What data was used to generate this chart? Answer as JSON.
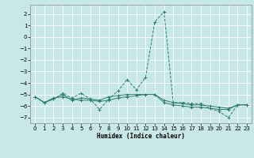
{
  "xlabel": "Humidex (Indice chaleur)",
  "bg_color": "#c8e8e8",
  "grid_color": "#ffffff",
  "line_color": "#2e7d6e",
  "xlim": [
    -0.5,
    23.5
  ],
  "ylim": [
    -7.5,
    2.8
  ],
  "yticks": [
    2,
    1,
    0,
    -1,
    -2,
    -3,
    -4,
    -5,
    -6,
    -7
  ],
  "xticks": [
    0,
    1,
    2,
    3,
    4,
    5,
    6,
    7,
    8,
    9,
    10,
    11,
    12,
    13,
    14,
    15,
    16,
    17,
    18,
    19,
    20,
    21,
    22,
    23
  ],
  "series1": [
    [
      0,
      -5.2
    ],
    [
      1,
      -5.7
    ],
    [
      2,
      -5.4
    ],
    [
      3,
      -4.9
    ],
    [
      4,
      -5.3
    ],
    [
      5,
      -4.9
    ],
    [
      6,
      -5.4
    ],
    [
      7,
      -6.3
    ],
    [
      8,
      -5.4
    ],
    [
      9,
      -4.7
    ],
    [
      10,
      -3.7
    ],
    [
      11,
      -4.6
    ],
    [
      12,
      -3.5
    ],
    [
      13,
      1.3
    ],
    [
      14,
      2.2
    ],
    [
      15,
      -5.7
    ],
    [
      16,
      -5.7
    ],
    [
      17,
      -5.8
    ],
    [
      18,
      -5.8
    ],
    [
      19,
      -6.2
    ],
    [
      20,
      -6.5
    ],
    [
      21,
      -7.0
    ],
    [
      22,
      -5.9
    ],
    [
      23,
      -5.9
    ]
  ],
  "series2": [
    [
      0,
      -5.2
    ],
    [
      1,
      -5.7
    ],
    [
      2,
      -5.3
    ],
    [
      3,
      -5.2
    ],
    [
      4,
      -5.4
    ],
    [
      5,
      -5.5
    ],
    [
      6,
      -5.5
    ],
    [
      7,
      -5.6
    ],
    [
      8,
      -5.5
    ],
    [
      9,
      -5.3
    ],
    [
      10,
      -5.2
    ],
    [
      11,
      -5.1
    ],
    [
      12,
      -5.0
    ],
    [
      13,
      -5.0
    ],
    [
      14,
      -5.5
    ],
    [
      15,
      -5.7
    ],
    [
      16,
      -5.8
    ],
    [
      17,
      -5.9
    ],
    [
      18,
      -5.9
    ],
    [
      19,
      -6.0
    ],
    [
      20,
      -6.1
    ],
    [
      21,
      -6.2
    ],
    [
      22,
      -5.9
    ],
    [
      23,
      -5.9
    ]
  ],
  "series3": [
    [
      0,
      -5.2
    ],
    [
      1,
      -5.7
    ],
    [
      2,
      -5.4
    ],
    [
      3,
      -5.0
    ],
    [
      4,
      -5.5
    ],
    [
      5,
      -5.3
    ],
    [
      6,
      -5.4
    ],
    [
      7,
      -5.5
    ],
    [
      8,
      -5.2
    ],
    [
      9,
      -5.1
    ],
    [
      10,
      -5.0
    ],
    [
      11,
      -5.0
    ],
    [
      12,
      -5.0
    ],
    [
      13,
      -5.0
    ],
    [
      14,
      -5.7
    ],
    [
      15,
      -5.9
    ],
    [
      16,
      -6.0
    ],
    [
      17,
      -6.1
    ],
    [
      18,
      -6.1
    ],
    [
      19,
      -6.2
    ],
    [
      20,
      -6.3
    ],
    [
      21,
      -6.3
    ],
    [
      22,
      -5.9
    ],
    [
      23,
      -5.9
    ]
  ]
}
